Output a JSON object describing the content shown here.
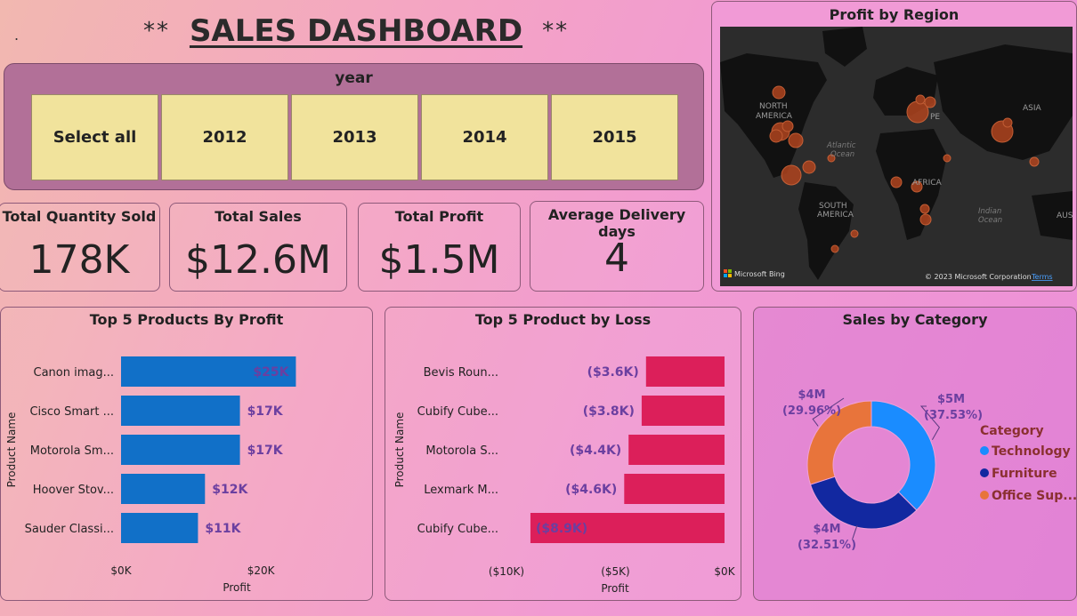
{
  "header": {
    "dot": ".",
    "stars_left": "**",
    "title": "SALES DASHBOARD",
    "stars_right": "**"
  },
  "slicer": {
    "title": "year",
    "options": [
      "Select all",
      "2012",
      "2013",
      "2014",
      "2015"
    ]
  },
  "kpis": [
    {
      "label": "Total Quantity Sold",
      "value": "178K"
    },
    {
      "label": "Total Sales",
      "value": "$12.6M"
    },
    {
      "label": "Total Profit",
      "value": "$1.5M"
    },
    {
      "label": "Average Delivery days",
      "value": "4"
    }
  ],
  "map": {
    "title": "Profit by Region",
    "labels": {
      "north_america": [
        "NORTH",
        "AMERICA"
      ],
      "south_america": [
        "SOUTH",
        "AMERICA"
      ],
      "europe": "PE",
      "asia": "ASIA",
      "africa": "AFRICA",
      "atlantic": [
        "Atlantic",
        "Ocean"
      ],
      "indian": [
        "Indian",
        "Ocean"
      ],
      "australia": "AUSTR"
    },
    "bing": "Microsoft Bing",
    "copyright": "© 2023 Microsoft Corporation",
    "terms": "Terms"
  },
  "colors": {
    "profit_bar": "#1170c8",
    "loss_bar": "#dc1f5a",
    "donut": [
      "#1a8cff",
      "#1228a0",
      "#e8743b"
    ],
    "label": "#6b3fa0"
  },
  "chart_data": [
    {
      "type": "bar",
      "orientation": "horizontal",
      "title": "Top 5 Products By Profit",
      "xlabel": "Profit",
      "ylabel": "Product Name",
      "categories": [
        "Canon imag...",
        "Cisco Smart ...",
        "Motorola Sm...",
        "Hoover Stov...",
        "Sauder Classi..."
      ],
      "values": [
        25,
        17,
        17,
        12,
        11
      ],
      "data_labels": [
        "$25K",
        "$17K",
        "$17K",
        "$12K",
        "$11K"
      ],
      "xlim": [
        0,
        28
      ],
      "xticks": [
        0,
        20
      ],
      "xtick_labels": [
        "$0K",
        "$20K"
      ]
    },
    {
      "type": "bar",
      "orientation": "horizontal",
      "title": "Top 5 Product by Loss",
      "xlabel": "Profit",
      "ylabel": "Product Name",
      "categories": [
        "Bevis Roun...",
        "Cubify Cube...",
        "Motorola S...",
        "Lexmark M...",
        "Cubify Cube..."
      ],
      "values": [
        -3.6,
        -3.8,
        -4.4,
        -4.6,
        -8.9
      ],
      "data_labels": [
        "($3.6K)",
        "($3.8K)",
        "($4.4K)",
        "($4.6K)",
        "($8.9K)"
      ],
      "xlim": [
        -10,
        0
      ],
      "xticks": [
        -10,
        -5,
        0
      ],
      "xtick_labels": [
        "($10K)",
        "($5K)",
        "$0K"
      ]
    },
    {
      "type": "pie",
      "donut": true,
      "title": "Sales by Category",
      "legend_title": "Category",
      "categories": [
        "Technology",
        "Furniture",
        "Office Sup..."
      ],
      "values": [
        37.53,
        32.51,
        29.96
      ],
      "value_labels": [
        "$5M",
        "$4M",
        "$4M"
      ],
      "percent_labels": [
        "(37.53%)",
        "(32.51%)",
        "(29.96%)"
      ],
      "legend": "right"
    }
  ]
}
